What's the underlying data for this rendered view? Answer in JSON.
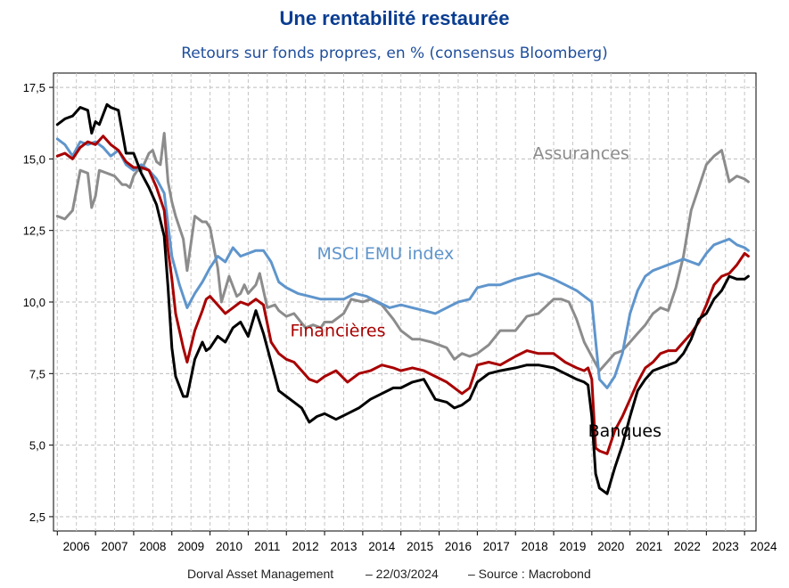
{
  "chart_data": {
    "type": "line",
    "title": "Une rentabilité restaurée",
    "subtitle": "Retours sur fonds propres, en % (consensus Bloomberg)",
    "xlabel": "",
    "ylabel": "",
    "ylim": [
      2.0,
      18.0
    ],
    "xlim": [
      2005.9,
      2024.3
    ],
    "yticks": [
      "2,5",
      "5,0",
      "7,5",
      "10,0",
      "12,5",
      "15,0",
      "17,5"
    ],
    "ytick_values": [
      2.5,
      5.0,
      7.5,
      10.0,
      12.5,
      15.0,
      17.5
    ],
    "xticks": [
      "2006",
      "2007",
      "2008",
      "2009",
      "2010",
      "2011",
      "2012",
      "2013",
      "2014",
      "2015",
      "2016",
      "2017",
      "2018",
      "2019",
      "2020",
      "2021",
      "2022",
      "2023",
      "2024"
    ],
    "grid": true,
    "series": [
      {
        "name": "Assurances",
        "label": "Assurances",
        "color": "#8c8c8c",
        "x": [
          2006.0,
          2006.2,
          2006.4,
          2006.6,
          2006.8,
          2006.9,
          2007.0,
          2007.1,
          2007.3,
          2007.5,
          2007.7,
          2007.8,
          2007.9,
          2008.0,
          2008.1,
          2008.2,
          2008.4,
          2008.5,
          2008.6,
          2008.7,
          2008.8,
          2008.9,
          2009.0,
          2009.1,
          2009.3,
          2009.4,
          2009.6,
          2009.8,
          2009.9,
          2010.0,
          2010.2,
          2010.3,
          2010.5,
          2010.7,
          2010.8,
          2010.9,
          2011.0,
          2011.2,
          2011.3,
          2011.5,
          2011.7,
          2011.8,
          2011.9,
          2012.0,
          2012.2,
          2012.5,
          2012.7,
          2012.9,
          2013.0,
          2013.2,
          2013.5,
          2013.7,
          2014.0,
          2014.2,
          2014.5,
          2014.8,
          2015.0,
          2015.3,
          2015.5,
          2015.8,
          2016.0,
          2016.2,
          2016.4,
          2016.6,
          2016.8,
          2017.0,
          2017.3,
          2017.6,
          2018.0,
          2018.3,
          2018.6,
          2019.0,
          2019.2,
          2019.4,
          2019.6,
          2019.8,
          2020.0,
          2020.2,
          2020.4,
          2020.6,
          2020.8,
          2021.0,
          2021.2,
          2021.4,
          2021.6,
          2021.8,
          2022.0,
          2022.2,
          2022.4,
          2022.6,
          2022.8,
          2023.0,
          2023.2,
          2023.4,
          2023.6,
          2023.8,
          2024.0,
          2024.1
        ],
        "values": [
          13.0,
          12.9,
          13.2,
          14.6,
          14.5,
          13.3,
          13.7,
          14.6,
          14.5,
          14.4,
          14.1,
          14.1,
          14.0,
          14.4,
          14.6,
          14.6,
          15.2,
          15.3,
          14.9,
          14.8,
          15.9,
          14.2,
          13.5,
          13.0,
          12.2,
          11.1,
          13.0,
          12.8,
          12.8,
          12.6,
          11.2,
          10.0,
          10.9,
          10.2,
          10.3,
          10.6,
          10.3,
          10.6,
          11.0,
          9.8,
          9.9,
          9.7,
          9.6,
          9.5,
          9.6,
          9.1,
          9.2,
          9.1,
          9.3,
          9.3,
          9.6,
          10.1,
          10.0,
          10.1,
          9.9,
          9.4,
          9.0,
          8.7,
          8.7,
          8.6,
          8.5,
          8.4,
          8.0,
          8.2,
          8.1,
          8.2,
          8.5,
          9.0,
          9.0,
          9.5,
          9.6,
          10.1,
          10.1,
          10.0,
          9.4,
          8.6,
          8.1,
          7.6,
          7.9,
          8.2,
          8.3,
          8.6,
          8.9,
          9.2,
          9.6,
          9.8,
          9.7,
          10.5,
          11.6,
          13.2,
          14.0,
          14.8,
          15.1,
          15.3,
          14.2,
          14.4,
          14.3,
          14.2
        ]
      },
      {
        "name": "MSCI EMU index",
        "label": "MSCI EMU index",
        "color": "#5f95cc",
        "x": [
          2006.0,
          2006.2,
          2006.4,
          2006.6,
          2006.8,
          2007.0,
          2007.2,
          2007.4,
          2007.6,
          2007.8,
          2008.0,
          2008.2,
          2008.4,
          2008.6,
          2008.8,
          2009.0,
          2009.2,
          2009.4,
          2009.6,
          2009.8,
          2010.0,
          2010.2,
          2010.4,
          2010.6,
          2010.8,
          2011.0,
          2011.2,
          2011.4,
          2011.6,
          2011.8,
          2012.0,
          2012.3,
          2012.6,
          2012.9,
          2013.2,
          2013.5,
          2013.8,
          2014.1,
          2014.4,
          2014.7,
          2015.0,
          2015.3,
          2015.6,
          2015.9,
          2016.2,
          2016.5,
          2016.8,
          2017.0,
          2017.3,
          2017.6,
          2018.0,
          2018.3,
          2018.6,
          2019.0,
          2019.3,
          2019.6,
          2019.8,
          2020.0,
          2020.2,
          2020.4,
          2020.6,
          2020.8,
          2021.0,
          2021.2,
          2021.4,
          2021.6,
          2021.8,
          2022.0,
          2022.2,
          2022.4,
          2022.6,
          2022.8,
          2023.0,
          2023.2,
          2023.4,
          2023.6,
          2023.8,
          2024.0,
          2024.1
        ],
        "values": [
          15.7,
          15.5,
          15.1,
          15.6,
          15.5,
          15.6,
          15.4,
          15.1,
          15.3,
          14.8,
          14.6,
          14.8,
          14.6,
          14.3,
          13.8,
          11.6,
          10.6,
          9.8,
          10.3,
          10.7,
          11.2,
          11.6,
          11.4,
          11.9,
          11.6,
          11.7,
          11.8,
          11.8,
          11.4,
          10.7,
          10.5,
          10.3,
          10.2,
          10.1,
          10.1,
          10.1,
          10.3,
          10.2,
          10.0,
          9.8,
          9.9,
          9.8,
          9.7,
          9.6,
          9.8,
          10.0,
          10.1,
          10.5,
          10.6,
          10.6,
          10.8,
          10.9,
          11.0,
          10.8,
          10.6,
          10.4,
          10.2,
          10.0,
          7.3,
          7.0,
          7.4,
          8.2,
          9.6,
          10.4,
          10.9,
          11.1,
          11.2,
          11.3,
          11.4,
          11.5,
          11.4,
          11.3,
          11.7,
          12.0,
          12.1,
          12.2,
          12.0,
          11.9,
          11.8
        ]
      },
      {
        "name": "Financières",
        "label": "Financières",
        "color": "#a80000",
        "x": [
          2006.0,
          2006.2,
          2006.4,
          2006.6,
          2006.8,
          2007.0,
          2007.2,
          2007.4,
          2007.6,
          2007.8,
          2008.0,
          2008.2,
          2008.4,
          2008.6,
          2008.8,
          2008.9,
          2009.0,
          2009.1,
          2009.3,
          2009.4,
          2009.6,
          2009.8,
          2009.9,
          2010.0,
          2010.2,
          2010.4,
          2010.6,
          2010.8,
          2011.0,
          2011.2,
          2011.4,
          2011.6,
          2011.8,
          2012.0,
          2012.2,
          2012.4,
          2012.6,
          2012.8,
          2013.0,
          2013.3,
          2013.6,
          2013.9,
          2014.2,
          2014.5,
          2014.8,
          2015.0,
          2015.3,
          2015.6,
          2015.9,
          2016.2,
          2016.4,
          2016.6,
          2016.8,
          2017.0,
          2017.3,
          2017.6,
          2018.0,
          2018.3,
          2018.6,
          2019.0,
          2019.3,
          2019.6,
          2019.8,
          2019.9,
          2020.0,
          2020.1,
          2020.2,
          2020.4,
          2020.6,
          2020.8,
          2021.0,
          2021.2,
          2021.4,
          2021.6,
          2021.8,
          2022.0,
          2022.2,
          2022.4,
          2022.6,
          2022.8,
          2023.0,
          2023.2,
          2023.4,
          2023.6,
          2023.8,
          2024.0,
          2024.1
        ],
        "values": [
          15.1,
          15.2,
          15.0,
          15.4,
          15.6,
          15.5,
          15.8,
          15.5,
          15.3,
          14.9,
          14.7,
          14.7,
          14.6,
          14.0,
          13.2,
          11.8,
          10.8,
          9.6,
          8.4,
          7.9,
          9.0,
          9.7,
          10.1,
          10.2,
          9.9,
          9.6,
          9.8,
          10.0,
          9.9,
          10.1,
          9.9,
          8.6,
          8.2,
          8.0,
          7.9,
          7.6,
          7.3,
          7.2,
          7.4,
          7.6,
          7.2,
          7.5,
          7.6,
          7.8,
          7.7,
          7.6,
          7.7,
          7.6,
          7.4,
          7.2,
          7.0,
          6.8,
          7.0,
          7.8,
          7.9,
          7.8,
          8.1,
          8.3,
          8.2,
          8.2,
          7.9,
          7.7,
          7.6,
          7.7,
          7.3,
          4.9,
          4.8,
          4.7,
          5.5,
          6.0,
          6.6,
          7.2,
          7.7,
          7.9,
          8.2,
          8.3,
          8.3,
          8.6,
          8.9,
          9.3,
          9.9,
          10.6,
          10.9,
          11.0,
          11.3,
          11.7,
          11.6
        ]
      },
      {
        "name": "Banques",
        "label": "Banques",
        "color": "#000000",
        "x": [
          2006.0,
          2006.2,
          2006.4,
          2006.6,
          2006.8,
          2006.9,
          2007.0,
          2007.1,
          2007.3,
          2007.4,
          2007.6,
          2007.8,
          2008.0,
          2008.2,
          2008.4,
          2008.6,
          2008.8,
          2008.9,
          2009.0,
          2009.1,
          2009.3,
          2009.4,
          2009.6,
          2009.8,
          2009.9,
          2010.0,
          2010.2,
          2010.4,
          2010.6,
          2010.8,
          2011.0,
          2011.2,
          2011.4,
          2011.6,
          2011.8,
          2012.0,
          2012.2,
          2012.4,
          2012.6,
          2012.8,
          2013.0,
          2013.3,
          2013.6,
          2013.9,
          2014.2,
          2014.5,
          2014.8,
          2015.0,
          2015.3,
          2015.6,
          2015.9,
          2016.2,
          2016.4,
          2016.6,
          2016.8,
          2017.0,
          2017.3,
          2017.6,
          2018.0,
          2018.3,
          2018.6,
          2019.0,
          2019.3,
          2019.6,
          2019.8,
          2019.9,
          2020.0,
          2020.1,
          2020.2,
          2020.4,
          2020.6,
          2020.8,
          2021.0,
          2021.2,
          2021.4,
          2021.6,
          2021.8,
          2022.0,
          2022.2,
          2022.4,
          2022.6,
          2022.8,
          2023.0,
          2023.2,
          2023.4,
          2023.6,
          2023.8,
          2024.0,
          2024.1
        ],
        "values": [
          16.2,
          16.4,
          16.5,
          16.8,
          16.7,
          15.9,
          16.3,
          16.2,
          16.9,
          16.8,
          16.7,
          15.2,
          15.2,
          14.5,
          14.0,
          13.4,
          12.3,
          10.5,
          8.4,
          7.4,
          6.7,
          6.7,
          8.0,
          8.6,
          8.3,
          8.4,
          8.8,
          8.6,
          9.1,
          9.3,
          8.8,
          9.7,
          8.9,
          7.9,
          6.9,
          6.7,
          6.5,
          6.3,
          5.8,
          6.0,
          6.1,
          5.9,
          6.1,
          6.3,
          6.6,
          6.8,
          7.0,
          7.0,
          7.2,
          7.3,
          6.6,
          6.5,
          6.3,
          6.4,
          6.6,
          7.2,
          7.5,
          7.6,
          7.7,
          7.8,
          7.8,
          7.7,
          7.5,
          7.3,
          7.2,
          7.1,
          6.0,
          4.0,
          3.5,
          3.3,
          4.2,
          5.0,
          6.0,
          6.9,
          7.3,
          7.6,
          7.7,
          7.8,
          7.9,
          8.2,
          8.7,
          9.4,
          9.6,
          10.1,
          10.4,
          10.9,
          10.8,
          10.8,
          10.9
        ]
      }
    ]
  },
  "footer": {
    "org": "Dorval Asset Management",
    "date": "– 22/03/2024",
    "source": "–  Source : Macrobond"
  }
}
